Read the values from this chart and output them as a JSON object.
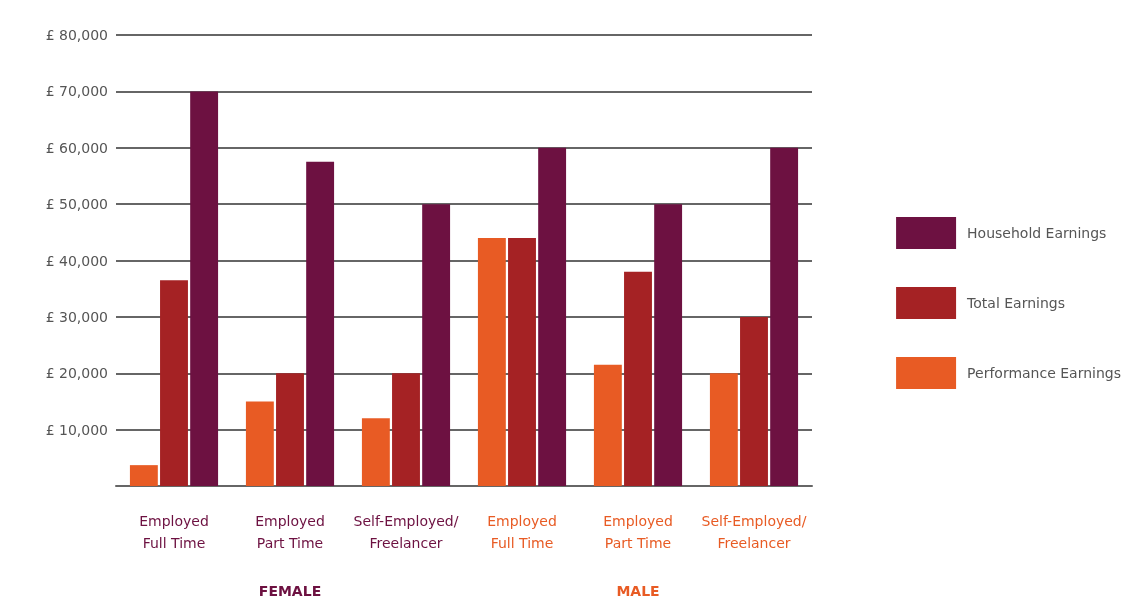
{
  "chart_data": {
    "type": "bar",
    "categories": [
      "Employed\nFull Time",
      "Employed\nPart Time",
      "Self-Employed/\nFreelancer",
      "Employed\nFull Time",
      "Employed\nPart Time",
      "Self-Employed/\nFreelancer"
    ],
    "series": [
      {
        "name": "Performance Earnings",
        "color": "#e85b24",
        "values": [
          3700,
          15000,
          12000,
          44000,
          21500,
          20000
        ]
      },
      {
        "name": "Total Earnings",
        "color": "#a52224",
        "values": [
          36500,
          20000,
          20000,
          44000,
          38000,
          30000
        ]
      },
      {
        "name": "Household Earnings",
        "color": "#6d1141",
        "values": [
          70000,
          57500,
          50000,
          60000,
          50000,
          60000
        ]
      }
    ],
    "ylim": [
      0,
      80000
    ],
    "yticks": [
      {
        "value": 0,
        "label": null
      },
      {
        "value": 10000,
        "label": "£ 10,000"
      },
      {
        "value": 20000,
        "label": "£ 20,000"
      },
      {
        "value": 30000,
        "label": "£ 30,000"
      },
      {
        "value": 40000,
        "label": "£ 40,000"
      },
      {
        "value": 50000,
        "label": "£ 50,000"
      },
      {
        "value": 60000,
        "label": "£ 60,000"
      },
      {
        "value": 70000,
        "label": "£ 70,000"
      },
      {
        "value": 80000,
        "label": "£ 80,000"
      }
    ],
    "grid": "y",
    "legend": "right",
    "annotations": [
      "FEMALE",
      "MALE"
    ]
  }
}
